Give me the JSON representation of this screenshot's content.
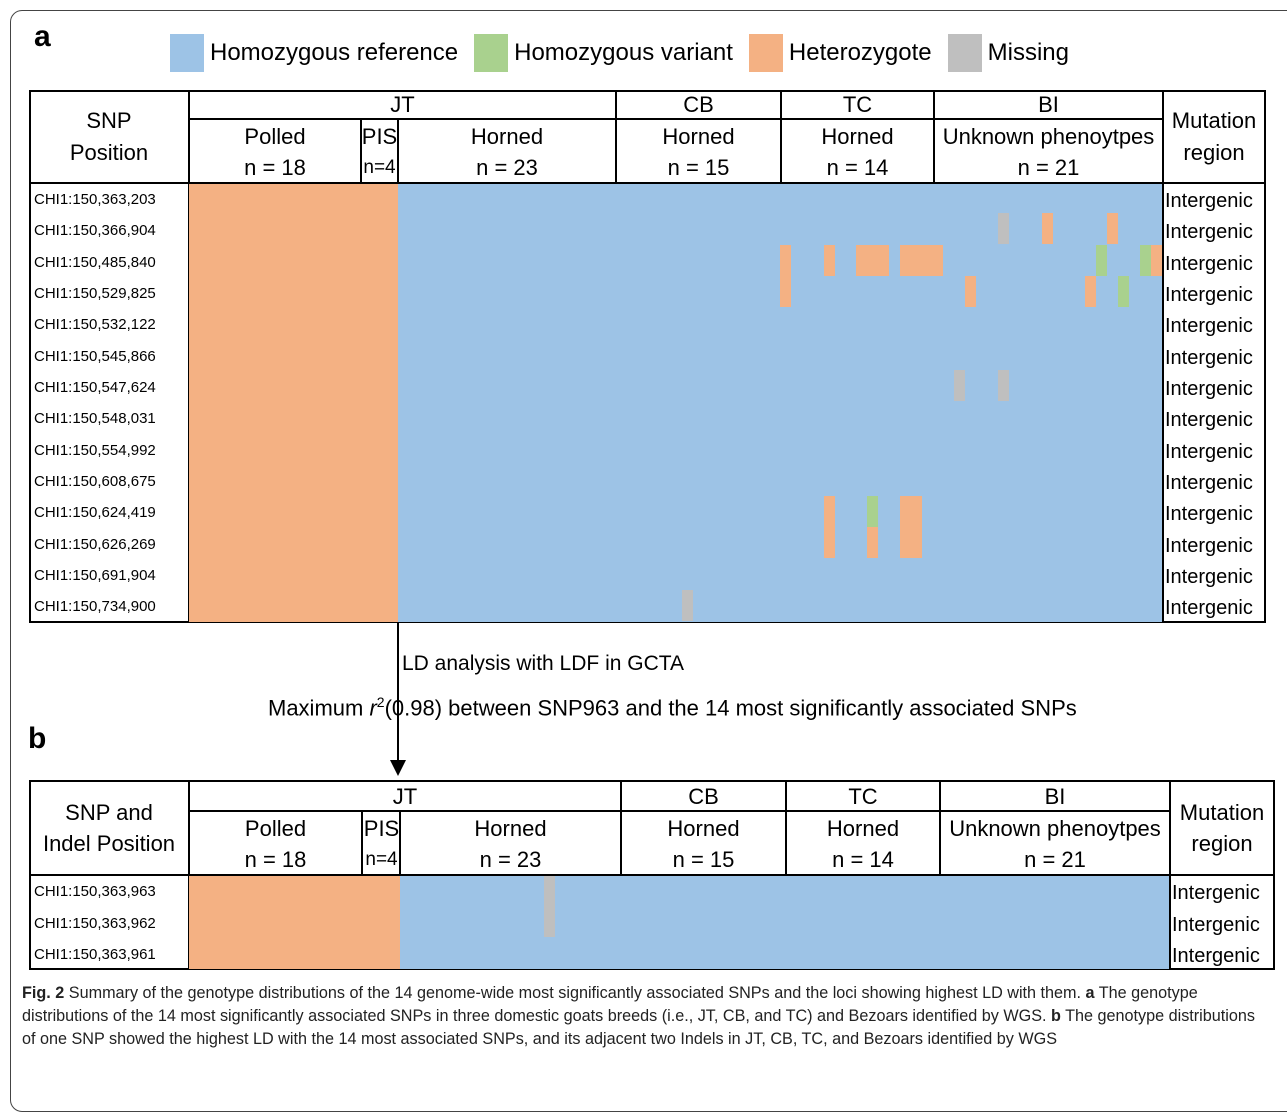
{
  "legend": {
    "items": [
      {
        "label": "Homozygous reference",
        "color": "#9dc3e6"
      },
      {
        "label": "Homozygous variant",
        "color": "#a9d18e"
      },
      {
        "label": "Heterozygote",
        "color": "#f4b183"
      },
      {
        "label": "Missing",
        "color": "#bfbfbf"
      }
    ]
  },
  "panel_a": {
    "label": "a",
    "header_first": "SNP\nPosition",
    "header_first_l1": "SNP",
    "header_first_l2": "Position",
    "breeds": [
      "JT",
      "CB",
      "TC",
      "BI"
    ],
    "groups": [
      {
        "name": "Polled",
        "n": "n = 18"
      },
      {
        "name": "PIS",
        "n": "n=4"
      },
      {
        "name": "Horned",
        "n": "n = 23"
      },
      {
        "name": "Horned",
        "n": "n = 15"
      },
      {
        "name": "Horned",
        "n": "n = 14"
      },
      {
        "name": "Unknown phenoytpes",
        "n": "n = 21"
      }
    ],
    "mutation_header_l1": "Mutation",
    "mutation_header_l2": "region",
    "rows": [
      {
        "pos": "CHI1:150,363,203",
        "region": "Intergenic"
      },
      {
        "pos": "CHI1:150,366,904",
        "region": "Intergenic"
      },
      {
        "pos": "CHI1:150,485,840",
        "region": "Intergenic"
      },
      {
        "pos": "CHI1:150,529,825",
        "region": "Intergenic"
      },
      {
        "pos": "CHI1:150,532,122",
        "region": "Intergenic"
      },
      {
        "pos": "CHI1:150,545,866",
        "region": "Intergenic"
      },
      {
        "pos": "CHI1:150,547,624",
        "region": "Intergenic"
      },
      {
        "pos": "CHI1:150,548,031",
        "region": "Intergenic"
      },
      {
        "pos": "CHI1:150,554,992",
        "region": "Intergenic"
      },
      {
        "pos": "CHI1:150,608,675",
        "region": "Intergenic"
      },
      {
        "pos": "CHI1:150,624,419",
        "region": "Intergenic"
      },
      {
        "pos": "CHI1:150,626,269",
        "region": "Intergenic"
      },
      {
        "pos": "CHI1:150,691,904",
        "region": "Intergenic"
      },
      {
        "pos": "CHI1:150,734,900",
        "region": "Intergenic"
      }
    ]
  },
  "link": {
    "ld_text": "LD analysis with LDF in GCTA",
    "max_prefix": "Maximum ",
    "max_r": "r",
    "max_sup": "2",
    "max_suffix": "(0.98) between SNP963 and the 14 most significantly associated SNPs"
  },
  "panel_b": {
    "label": "b",
    "header_first_l1": "SNP and",
    "header_first_l2": "Indel Position",
    "breeds": [
      "JT",
      "CB",
      "TC",
      "BI"
    ],
    "groups": [
      {
        "name": "Polled",
        "n": "n = 18"
      },
      {
        "name": "PIS",
        "n": "n=4"
      },
      {
        "name": "Horned",
        "n": "n = 23"
      },
      {
        "name": "Horned",
        "n": "n = 15"
      },
      {
        "name": "Horned",
        "n": "n = 14"
      },
      {
        "name": "Unknown phenoytpes",
        "n": "n = 21"
      }
    ],
    "mutation_header_l1": "Mutation",
    "mutation_header_l2": "region",
    "rows": [
      {
        "pos": "CHI1:150,363,963",
        "region": "Intergenic"
      },
      {
        "pos": "CHI1:150,363,962",
        "region": "Intergenic"
      },
      {
        "pos": "CHI1:150,363,961",
        "region": "Intergenic"
      }
    ]
  },
  "caption": {
    "fig": "Fig. 2",
    "text1": " Summary of the genotype distributions of the 14 genome-wide most significantly associated SNPs and the loci showing highest LD with them. ",
    "a": "a",
    "text2": " The genotype distributions of the 14 most significantly associated SNPs in three domestic goats breeds (i.e., JT, CB, and TC) and Bezoars identified by WGS. ",
    "b": "b",
    "text3": " The genotype distributions of one SNP showed the highest LD with the 14 most associated SNPs, and its adjacent two Indels in JT, CB, TC, and Bezoars identified by WGS"
  }
}
